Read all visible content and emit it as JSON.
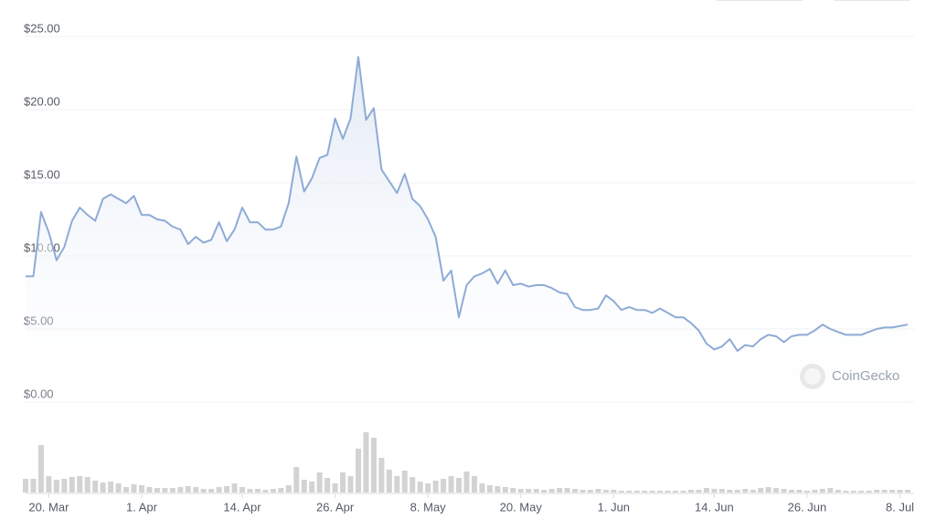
{
  "chart_data": [
    {
      "type": "line",
      "watermark": "CoinGecko",
      "x": [
        76,
        77,
        78,
        79,
        80,
        81,
        82,
        83,
        84,
        85,
        86,
        87,
        88,
        89,
        90,
        91,
        92,
        93,
        94,
        95,
        96,
        97,
        98,
        99,
        100,
        101,
        102,
        103,
        104,
        105,
        106,
        107,
        108,
        109,
        110,
        111,
        112,
        113,
        114,
        115,
        116,
        117,
        118,
        119,
        120,
        121,
        122,
        123,
        124,
        125,
        126,
        127,
        128,
        129,
        130,
        131,
        132,
        133,
        134,
        135,
        136,
        137,
        138,
        139,
        140,
        141,
        142,
        143,
        144,
        145,
        146,
        147,
        148,
        149,
        150,
        151,
        152,
        153,
        154,
        155,
        156,
        157,
        158,
        159,
        160,
        161,
        162,
        163,
        164,
        165,
        166,
        167,
        168,
        169,
        170,
        171,
        172,
        173,
        174,
        175,
        176,
        177,
        178,
        179,
        180,
        181,
        182,
        183,
        184,
        185,
        186,
        187,
        188,
        189,
        190
      ],
      "series": [
        {
          "color": "#8eabd6",
          "values": [
            8.6,
            8.6,
            13.0,
            11.6,
            9.7,
            10.6,
            12.4,
            13.3,
            12.8,
            12.4,
            13.9,
            14.2,
            13.9,
            13.6,
            14.1,
            12.8,
            12.8,
            12.5,
            12.4,
            12.0,
            11.8,
            10.8,
            11.3,
            10.9,
            11.1,
            12.3,
            11.0,
            11.8,
            13.3,
            12.3,
            12.3,
            11.8,
            11.8,
            12.0,
            13.6,
            16.8,
            14.4,
            15.3,
            16.7,
            16.9,
            19.4,
            18.0,
            19.4,
            23.6,
            19.3,
            20.1,
            15.9,
            15.1,
            14.3,
            15.6,
            13.9,
            13.4,
            12.5,
            11.3,
            8.3,
            9.0,
            5.8,
            8.0,
            8.6,
            8.8,
            9.1,
            8.1,
            9.0,
            8.0,
            8.1,
            7.9,
            8.0,
            8.0,
            7.8,
            7.5,
            7.4,
            6.5,
            6.3,
            6.3,
            6.4,
            7.3,
            6.9,
            6.3,
            6.5,
            6.3,
            6.3,
            6.1,
            6.4,
            6.1,
            5.8,
            5.8,
            5.4,
            4.9,
            4.0,
            3.6,
            3.8,
            4.3,
            3.5,
            3.9,
            3.8,
            4.3,
            4.6,
            4.5,
            4.1,
            4.5,
            4.6,
            4.6,
            4.9,
            5.3,
            5.0,
            4.8,
            4.6,
            4.6,
            4.6,
            4.8,
            5.0,
            5.1,
            5.1,
            5.2,
            5.3
          ]
        }
      ],
      "xlim": [
        76,
        190
      ],
      "xticks": [
        {
          "value": 79,
          "label": "20. Mar"
        },
        {
          "value": 91,
          "label": "1. Apr"
        },
        {
          "value": 104,
          "label": "14. Apr"
        },
        {
          "value": 116,
          "label": "26. Apr"
        },
        {
          "value": 128,
          "label": "8. May"
        },
        {
          "value": 140,
          "label": "20. May"
        },
        {
          "value": 152,
          "label": "1. Jun"
        },
        {
          "value": 165,
          "label": "14. Jun"
        },
        {
          "value": 177,
          "label": "26. Jun"
        },
        {
          "value": 189,
          "label": "8. Jul"
        }
      ],
      "ylim": [
        0,
        25
      ],
      "yticks": [
        {
          "value": 0,
          "label": "$0.00"
        },
        {
          "value": 5,
          "label": "$5.00"
        },
        {
          "value": 10,
          "label": "$10.00"
        },
        {
          "value": 15,
          "label": "$15.00"
        },
        {
          "value": 20,
          "label": "$20.00"
        },
        {
          "value": 25,
          "label": "$25.00"
        }
      ],
      "grid": true
    },
    {
      "type": "bar",
      "color": "#d3d3d3",
      "values": [
        15,
        15,
        52,
        18,
        14,
        15,
        17,
        18,
        17,
        13,
        11,
        12,
        10,
        6,
        9,
        8,
        6,
        5,
        5,
        5,
        6,
        7,
        6,
        4,
        4,
        6,
        7,
        10,
        6,
        4,
        4,
        3,
        4,
        5,
        8,
        28,
        14,
        12,
        22,
        16,
        10,
        22,
        18,
        48,
        66,
        60,
        38,
        25,
        18,
        24,
        17,
        12,
        10,
        13,
        15,
        18,
        16,
        23,
        18,
        10,
        8,
        7,
        6,
        5,
        4,
        4,
        4,
        3,
        4,
        5,
        5,
        4,
        3,
        3,
        4,
        3,
        3,
        2,
        2,
        2,
        2,
        2,
        2,
        2,
        2,
        2,
        3,
        3,
        5,
        4,
        4,
        3,
        3,
        4,
        3,
        5,
        6,
        5,
        4,
        3,
        3,
        2,
        3,
        4,
        5,
        3,
        2,
        2,
        2,
        2,
        3,
        3,
        3,
        3,
        3
      ],
      "ylim": [
        0,
        70
      ]
    }
  ]
}
